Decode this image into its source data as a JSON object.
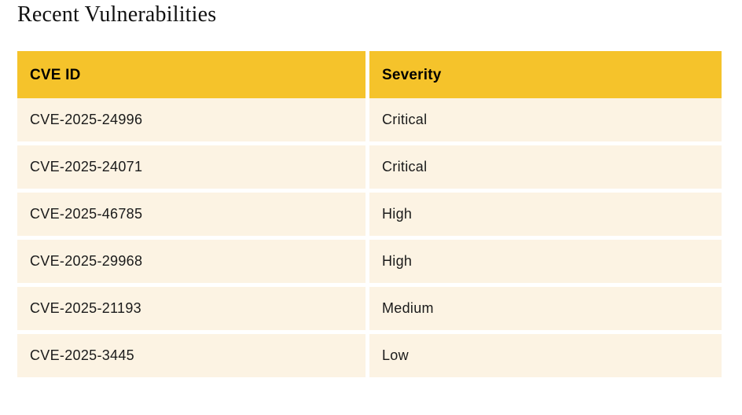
{
  "page_title": "Recent Vulnerabilities",
  "colors": {
    "header_bg": "#F5C32B",
    "row_bg": "#FCF3E3",
    "header_text": "#000000",
    "row_text": "#1A1A1A",
    "page_bg": "#FFFFFF"
  },
  "table": {
    "headers": [
      "CVE ID",
      "Severity"
    ],
    "rows": [
      {
        "cve_id": "CVE-2025-24996",
        "severity": "Critical"
      },
      {
        "cve_id": "CVE-2025-24071",
        "severity": "Critical"
      },
      {
        "cve_id": "CVE-2025-46785",
        "severity": "High"
      },
      {
        "cve_id": "CVE-2025-29968",
        "severity": "High"
      },
      {
        "cve_id": "CVE-2025-21193",
        "severity": "Medium"
      },
      {
        "cve_id": "CVE-2025-3445",
        "severity": "Low"
      }
    ]
  },
  "chart_data": {
    "type": "table",
    "title": "Recent Vulnerabilities",
    "columns": [
      "CVE ID",
      "Severity"
    ],
    "rows": [
      [
        "CVE-2025-24996",
        "Critical"
      ],
      [
        "CVE-2025-24071",
        "Critical"
      ],
      [
        "CVE-2025-46785",
        "High"
      ],
      [
        "CVE-2025-29968",
        "High"
      ],
      [
        "CVE-2025-21193",
        "Medium"
      ],
      [
        "CVE-2025-3445",
        "Low"
      ]
    ],
    "layout": {
      "header_position": "top",
      "grid": "separated-cells",
      "legend": "none"
    }
  }
}
